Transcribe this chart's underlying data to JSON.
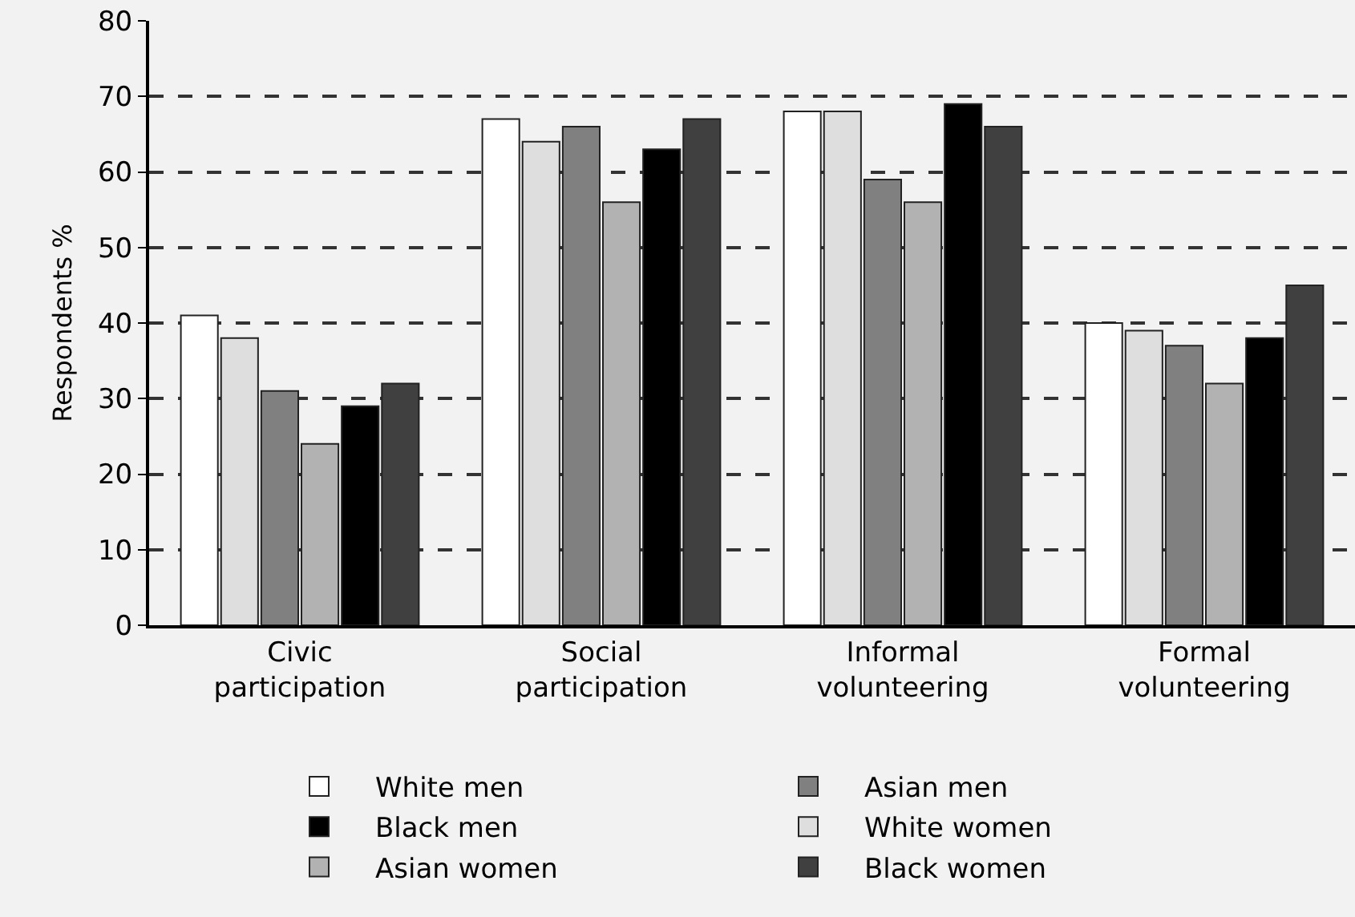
{
  "chart_data": {
    "type": "bar",
    "ylabel": "Respondents %",
    "categories": [
      "Civic\nparticipation",
      "Social\nparticipation",
      "Informal\nvolunteering",
      "Formal\nvolunteering"
    ],
    "series": [
      {
        "name": "White men",
        "color": "#ffffff",
        "values": [
          41,
          67,
          68,
          40
        ]
      },
      {
        "name": "White women",
        "color": "#dedede",
        "values": [
          38,
          64,
          68,
          39
        ]
      },
      {
        "name": "Asian men",
        "color": "#808080",
        "values": [
          31,
          66,
          59,
          37
        ]
      },
      {
        "name": "Asian women",
        "color": "#b2b2b2",
        "values": [
          24,
          56,
          56,
          32
        ]
      },
      {
        "name": "Black men",
        "color": "#000000",
        "values": [
          29,
          63,
          69,
          38
        ]
      },
      {
        "name": "Black women",
        "color": "#404040",
        "values": [
          32,
          67,
          66,
          45
        ]
      }
    ],
    "ylim": [
      0,
      80
    ],
    "yticks": [
      0,
      10,
      20,
      30,
      40,
      50,
      60,
      70,
      80
    ],
    "grid": "y",
    "legend": "bottom"
  }
}
